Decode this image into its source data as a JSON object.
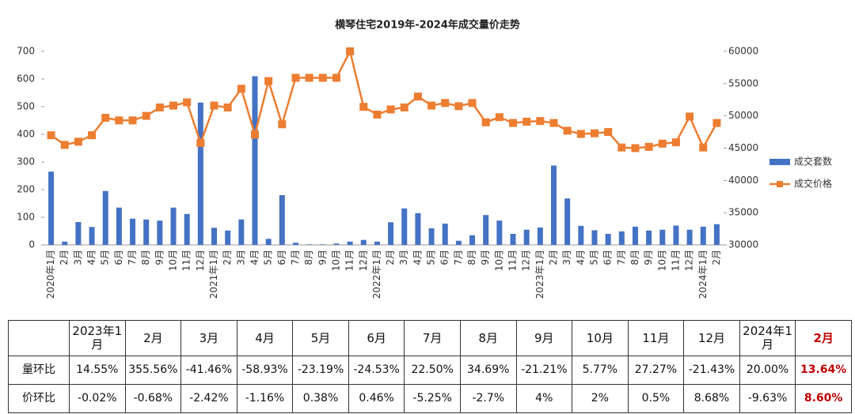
{
  "chart_data": {
    "type": "bar-line",
    "title": "横琴住宅2019年-2024年成交量价走势",
    "categories": [
      "2020年1月",
      "2月",
      "3月",
      "4月",
      "5月",
      "6月",
      "7月",
      "8月",
      "9月",
      "10月",
      "11月",
      "12月",
      "2021年1月",
      "2月",
      "3月",
      "4月",
      "5月",
      "6月",
      "7月",
      "8月",
      "9月",
      "10月",
      "11月",
      "12月",
      "2022年1月",
      "2月",
      "3月",
      "4月",
      "5月",
      "6月",
      "7月",
      "8月",
      "9月",
      "10月",
      "11月",
      "12月",
      "2023年1月",
      "2月",
      "3月",
      "4月",
      "5月",
      "6月",
      "7月",
      "8月",
      "9月",
      "10月",
      "11月",
      "12月",
      "2024年1月",
      "2月"
    ],
    "series": [
      {
        "name": "成交套数",
        "type": "bar",
        "color": "#4472c4",
        "values": [
          265,
          12,
          83,
          65,
          195,
          135,
          95,
          92,
          88,
          135,
          112,
          515,
          62,
          52,
          92,
          610,
          22,
          180,
          8,
          2,
          2,
          5,
          12,
          18,
          12,
          82,
          132,
          115,
          60,
          77,
          15,
          35,
          108,
          88,
          40,
          55,
          63,
          287,
          168,
          69,
          53,
          40,
          49,
          66,
          52,
          55,
          70,
          55,
          66,
          75
        ]
      },
      {
        "name": "成交价格",
        "type": "line",
        "axis": "y2",
        "color": "#ed7d31",
        "values": [
          47000,
          45500,
          46000,
          47000,
          49700,
          49300,
          49300,
          50000,
          51300,
          51600,
          52100,
          45800,
          51600,
          51300,
          54200,
          47100,
          55400,
          48700,
          55900,
          55900,
          55900,
          55900,
          60000,
          51400,
          50200,
          51000,
          51300,
          53000,
          51600,
          52000,
          51500,
          52000,
          49000,
          49800,
          48900,
          49100,
          49200,
          48900,
          47700,
          47200,
          47300,
          47500,
          45100,
          45000,
          45200,
          45700,
          45900,
          49900,
          45100,
          48900
        ]
      }
    ],
    "ylim": [
      0,
      700
    ],
    "yticks": [
      0,
      100,
      200,
      300,
      400,
      500,
      600,
      700
    ],
    "y2lim": [
      30000,
      60000
    ],
    "y2ticks": [
      30000,
      35000,
      40000,
      45000,
      50000,
      55000,
      60000
    ],
    "legend": "right"
  },
  "table": {
    "header": [
      "",
      "2023年1月",
      "2月",
      "3月",
      "4月",
      "5月",
      "6月",
      "7月",
      "8月",
      "9月",
      "10月",
      "11月",
      "12月",
      "2024年1月",
      "2月"
    ],
    "rows": [
      [
        "量环比",
        "14.55%",
        "355.56%",
        "-41.46%",
        "-58.93%",
        "-23.19%",
        "-24.53%",
        "22.50%",
        "34.69%",
        "-21.21%",
        "5.77%",
        "27.27%",
        "-21.43%",
        "20.00%",
        "13.64%"
      ],
      [
        "价环比",
        "-0.02%",
        "-0.68%",
        "-2.42%",
        "-1.16%",
        "0.38%",
        "0.46%",
        "-5.25%",
        "-2.7%",
        "4%",
        "2%",
        "0.5%",
        "8.68%",
        "-9.63%",
        "8.60%"
      ]
    ]
  }
}
